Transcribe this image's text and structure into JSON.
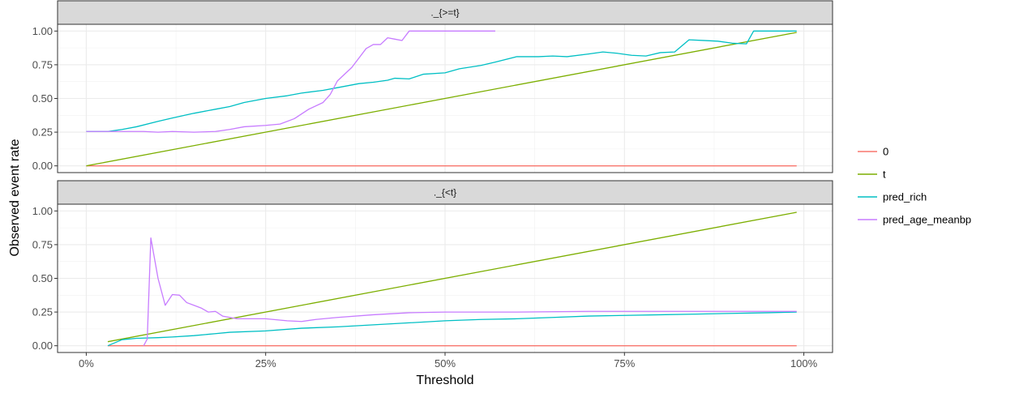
{
  "chart_data": {
    "type": "line",
    "xlabel": "Threshold",
    "ylabel": "Observed event rate",
    "x_ticks": [
      "0%",
      "25%",
      "50%",
      "75%",
      "100%"
    ],
    "y_ticks": [
      "0.00",
      "0.25",
      "0.50",
      "0.75",
      "1.00"
    ],
    "xlim": [
      -0.04,
      1.04
    ],
    "ylim": [
      -0.05,
      1.05
    ],
    "grid": true,
    "legend_position": "right",
    "legend": [
      {
        "name": "0",
        "color": "#F8766D"
      },
      {
        "name": "t",
        "color": "#7CAE00"
      },
      {
        "name": "pred_rich",
        "color": "#00BFC4"
      },
      {
        "name": "pred_age_meanbp",
        "color": "#C77CFF"
      }
    ],
    "panels": [
      {
        "strip": "._{>=t}",
        "series": [
          {
            "name": "0",
            "color": "#F8766D",
            "points": [
              [
                0,
                0
              ],
              [
                0.99,
                0
              ]
            ]
          },
          {
            "name": "t",
            "color": "#7CAE00",
            "points": [
              [
                0,
                0
              ],
              [
                0.99,
                0.99
              ]
            ]
          },
          {
            "name": "pred_rich",
            "color": "#00BFC4",
            "points": [
              [
                0,
                0.255
              ],
              [
                0.03,
                0.255
              ],
              [
                0.05,
                0.27
              ],
              [
                0.07,
                0.29
              ],
              [
                0.1,
                0.33
              ],
              [
                0.12,
                0.355
              ],
              [
                0.15,
                0.39
              ],
              [
                0.18,
                0.42
              ],
              [
                0.2,
                0.44
              ],
              [
                0.22,
                0.47
              ],
              [
                0.25,
                0.5
              ],
              [
                0.28,
                0.52
              ],
              [
                0.3,
                0.54
              ],
              [
                0.33,
                0.56
              ],
              [
                0.35,
                0.58
              ],
              [
                0.38,
                0.61
              ],
              [
                0.4,
                0.62
              ],
              [
                0.42,
                0.635
              ],
              [
                0.43,
                0.65
              ],
              [
                0.45,
                0.645
              ],
              [
                0.47,
                0.68
              ],
              [
                0.5,
                0.69
              ],
              [
                0.52,
                0.72
              ],
              [
                0.55,
                0.745
              ],
              [
                0.57,
                0.77
              ],
              [
                0.6,
                0.81
              ],
              [
                0.63,
                0.81
              ],
              [
                0.65,
                0.815
              ],
              [
                0.67,
                0.81
              ],
              [
                0.7,
                0.83
              ],
              [
                0.72,
                0.845
              ],
              [
                0.74,
                0.835
              ],
              [
                0.76,
                0.82
              ],
              [
                0.78,
                0.815
              ],
              [
                0.8,
                0.84
              ],
              [
                0.82,
                0.845
              ],
              [
                0.84,
                0.935
              ],
              [
                0.86,
                0.93
              ],
              [
                0.88,
                0.925
              ],
              [
                0.9,
                0.91
              ],
              [
                0.92,
                0.905
              ],
              [
                0.93,
                1.0
              ],
              [
                0.96,
                1.0
              ],
              [
                0.99,
                1.0
              ]
            ]
          },
          {
            "name": "pred_age_meanbp",
            "color": "#C77CFF",
            "points": [
              [
                0,
                0.255
              ],
              [
                0.05,
                0.255
              ],
              [
                0.08,
                0.255
              ],
              [
                0.1,
                0.25
              ],
              [
                0.12,
                0.255
              ],
              [
                0.15,
                0.25
              ],
              [
                0.18,
                0.255
              ],
              [
                0.2,
                0.27
              ],
              [
                0.22,
                0.29
              ],
              [
                0.25,
                0.3
              ],
              [
                0.27,
                0.31
              ],
              [
                0.29,
                0.35
              ],
              [
                0.31,
                0.42
              ],
              [
                0.33,
                0.47
              ],
              [
                0.34,
                0.53
              ],
              [
                0.35,
                0.63
              ],
              [
                0.37,
                0.73
              ],
              [
                0.38,
                0.8
              ],
              [
                0.39,
                0.87
              ],
              [
                0.4,
                0.9
              ],
              [
                0.41,
                0.9
              ],
              [
                0.42,
                0.95
              ],
              [
                0.43,
                0.94
              ],
              [
                0.44,
                0.93
              ],
              [
                0.45,
                1.0
              ],
              [
                0.5,
                1.0
              ],
              [
                0.55,
                1.0
              ],
              [
                0.57,
                1.0
              ]
            ]
          }
        ]
      },
      {
        "strip": "._{<t}",
        "series": [
          {
            "name": "0",
            "color": "#F8766D",
            "points": [
              [
                0.03,
                0
              ],
              [
                0.99,
                0
              ]
            ]
          },
          {
            "name": "t",
            "color": "#7CAE00",
            "points": [
              [
                0.03,
                0.03
              ],
              [
                0.99,
                0.99
              ]
            ]
          },
          {
            "name": "pred_rich",
            "color": "#00BFC4",
            "points": [
              [
                0.03,
                0.0
              ],
              [
                0.05,
                0.045
              ],
              [
                0.07,
                0.055
              ],
              [
                0.1,
                0.06
              ],
              [
                0.12,
                0.065
              ],
              [
                0.15,
                0.075
              ],
              [
                0.18,
                0.09
              ],
              [
                0.2,
                0.1
              ],
              [
                0.25,
                0.11
              ],
              [
                0.3,
                0.13
              ],
              [
                0.35,
                0.14
              ],
              [
                0.4,
                0.155
              ],
              [
                0.45,
                0.17
              ],
              [
                0.5,
                0.185
              ],
              [
                0.55,
                0.195
              ],
              [
                0.6,
                0.2
              ],
              [
                0.65,
                0.21
              ],
              [
                0.7,
                0.22
              ],
              [
                0.75,
                0.225
              ],
              [
                0.8,
                0.23
              ],
              [
                0.85,
                0.235
              ],
              [
                0.9,
                0.24
              ],
              [
                0.95,
                0.245
              ],
              [
                0.99,
                0.25
              ]
            ]
          },
          {
            "name": "pred_age_meanbp",
            "color": "#C77CFF",
            "points": [
              [
                0.08,
                0.0
              ],
              [
                0.085,
                0.05
              ],
              [
                0.09,
                0.8
              ],
              [
                0.1,
                0.5
              ],
              [
                0.11,
                0.3
              ],
              [
                0.12,
                0.38
              ],
              [
                0.13,
                0.375
              ],
              [
                0.14,
                0.32
              ],
              [
                0.15,
                0.3
              ],
              [
                0.16,
                0.28
              ],
              [
                0.17,
                0.25
              ],
              [
                0.18,
                0.255
              ],
              [
                0.19,
                0.22
              ],
              [
                0.21,
                0.2
              ],
              [
                0.25,
                0.2
              ],
              [
                0.28,
                0.185
              ],
              [
                0.3,
                0.18
              ],
              [
                0.32,
                0.195
              ],
              [
                0.35,
                0.21
              ],
              [
                0.4,
                0.23
              ],
              [
                0.45,
                0.245
              ],
              [
                0.5,
                0.25
              ],
              [
                0.6,
                0.25
              ],
              [
                0.7,
                0.255
              ],
              [
                0.8,
                0.255
              ],
              [
                0.9,
                0.255
              ],
              [
                0.99,
                0.255
              ]
            ]
          }
        ]
      }
    ]
  }
}
